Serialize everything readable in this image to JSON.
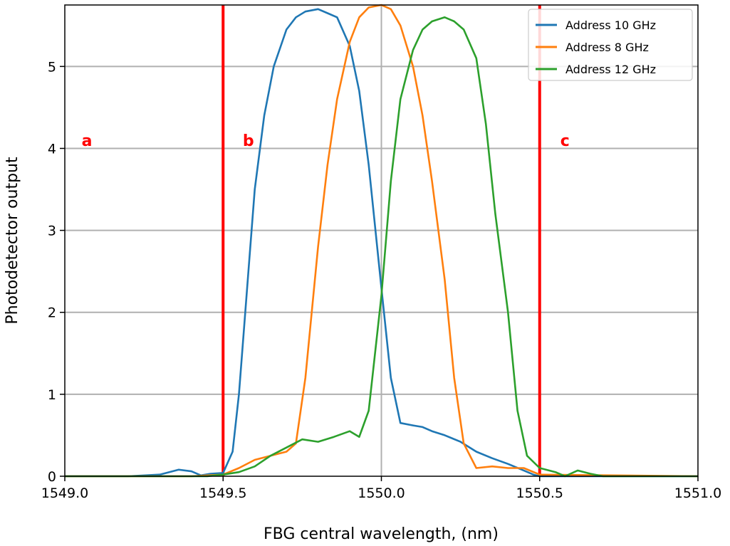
{
  "chart_data": {
    "type": "line",
    "title": "",
    "xlabel": "FBG central wavelength, (nm)",
    "ylabel": "Photodetector output",
    "xlim": [
      1549.0,
      1551.0
    ],
    "ylim": [
      0,
      5.75
    ],
    "xticks": [
      1549.0,
      1549.5,
      1550.0,
      1550.5,
      1551.0
    ],
    "xtick_labels": [
      "1549.0",
      "1549.5",
      "1550.0",
      "1550.5",
      "1551.0"
    ],
    "yticks": [
      0,
      1,
      2,
      3,
      4,
      5
    ],
    "ytick_labels": [
      "0",
      "1",
      "2",
      "3",
      "4",
      "5"
    ],
    "grid": "horizontal",
    "center_line_x": 1550.0,
    "legend_position": "top-right",
    "series": [
      {
        "name": "Address 10 GHz",
        "color": "#1f77b4",
        "x": [
          1549.0,
          1549.2,
          1549.3,
          1549.33,
          1549.36,
          1549.4,
          1549.43,
          1549.46,
          1549.5,
          1549.53,
          1549.55,
          1549.58,
          1549.6,
          1549.63,
          1549.66,
          1549.7,
          1549.73,
          1549.76,
          1549.8,
          1549.83,
          1549.86,
          1549.9,
          1549.93,
          1549.96,
          1550.0,
          1550.03,
          1550.06,
          1550.1,
          1550.13,
          1550.16,
          1550.2,
          1550.25,
          1550.3,
          1550.35,
          1550.4,
          1550.45,
          1550.48,
          1550.5,
          1550.55,
          1551.0
        ],
        "y": [
          0.0,
          0.0,
          0.02,
          0.05,
          0.08,
          0.06,
          0.01,
          0.03,
          0.04,
          0.3,
          1.0,
          2.5,
          3.5,
          4.4,
          5.0,
          5.45,
          5.6,
          5.67,
          5.7,
          5.65,
          5.6,
          5.25,
          4.7,
          3.8,
          2.3,
          1.2,
          0.65,
          0.62,
          0.6,
          0.55,
          0.5,
          0.42,
          0.3,
          0.22,
          0.15,
          0.07,
          0.02,
          0.0,
          0.0,
          0.0
        ]
      },
      {
        "name": "Address 8 GHz",
        "color": "#ff7f0e",
        "x": [
          1549.0,
          1549.4,
          1549.5,
          1549.55,
          1549.6,
          1549.65,
          1549.7,
          1549.73,
          1549.76,
          1549.8,
          1549.83,
          1549.86,
          1549.9,
          1549.93,
          1549.96,
          1550.0,
          1550.03,
          1550.06,
          1550.1,
          1550.13,
          1550.16,
          1550.2,
          1550.23,
          1550.26,
          1550.3,
          1550.35,
          1550.4,
          1550.45,
          1550.5,
          1551.0
        ],
        "y": [
          0.0,
          0.0,
          0.02,
          0.1,
          0.2,
          0.25,
          0.3,
          0.4,
          1.2,
          2.8,
          3.8,
          4.6,
          5.3,
          5.6,
          5.72,
          5.75,
          5.7,
          5.5,
          5.0,
          4.4,
          3.6,
          2.4,
          1.2,
          0.4,
          0.1,
          0.12,
          0.1,
          0.1,
          0.02,
          0.0
        ]
      },
      {
        "name": "Address 12 GHz",
        "color": "#2ca02c",
        "x": [
          1549.0,
          1549.45,
          1549.5,
          1549.55,
          1549.6,
          1549.65,
          1549.7,
          1549.75,
          1549.8,
          1549.85,
          1549.9,
          1549.93,
          1549.96,
          1550.0,
          1550.03,
          1550.06,
          1550.1,
          1550.13,
          1550.16,
          1550.2,
          1550.23,
          1550.26,
          1550.3,
          1550.33,
          1550.36,
          1550.4,
          1550.43,
          1550.46,
          1550.5,
          1550.55,
          1550.58,
          1550.62,
          1550.66,
          1550.7,
          1551.0
        ],
        "y": [
          0.0,
          0.0,
          0.02,
          0.05,
          0.12,
          0.25,
          0.35,
          0.45,
          0.42,
          0.48,
          0.55,
          0.48,
          0.8,
          2.2,
          3.6,
          4.6,
          5.2,
          5.45,
          5.55,
          5.6,
          5.55,
          5.45,
          5.1,
          4.3,
          3.2,
          2.0,
          0.8,
          0.25,
          0.1,
          0.05,
          0.0,
          0.07,
          0.03,
          0.0,
          0.0
        ]
      }
    ],
    "vertical_markers": [
      {
        "x": 1549.5,
        "color": "#ff0000"
      },
      {
        "x": 1550.5,
        "color": "#ff0000"
      }
    ],
    "annotations": [
      {
        "text": "a",
        "x": 1549.07,
        "y": 4.1,
        "color": "#ff0000"
      },
      {
        "text": "b",
        "x": 1549.58,
        "y": 4.1,
        "color": "#ff0000"
      },
      {
        "text": "c",
        "x": 1550.58,
        "y": 4.1,
        "color": "#ff0000"
      }
    ]
  }
}
